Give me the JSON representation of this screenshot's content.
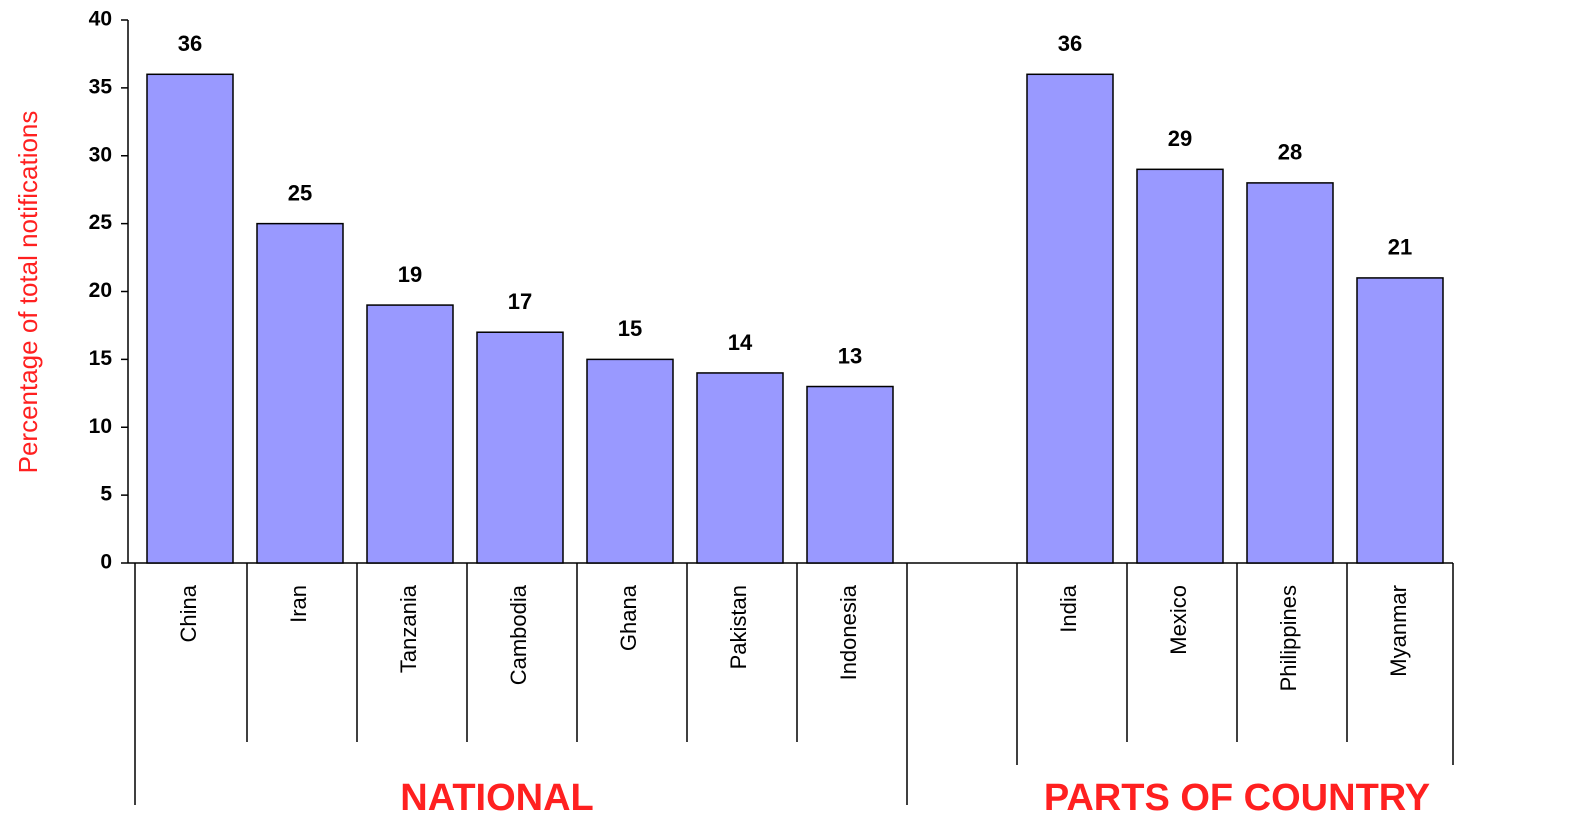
{
  "chart_data": {
    "type": "bar",
    "y_label": "Percentage of total notifications",
    "categories": [
      "China",
      "Iran",
      "Tanzania",
      "Cambodia",
      "Ghana",
      "Pakistan",
      "Indonesia",
      null,
      "India",
      "Mexico",
      "Philippines",
      "Myanmar"
    ],
    "values": [
      36,
      25,
      19,
      17,
      15,
      14,
      13,
      null,
      36,
      29,
      28,
      21
    ],
    "color": "#9999ff",
    "ylim": [
      0,
      40
    ],
    "yticks": [
      0,
      5,
      10,
      15,
      20,
      25,
      30,
      35,
      40
    ],
    "groups": [
      "NATIONAL",
      "PARTS OF COUNTRY"
    ]
  }
}
